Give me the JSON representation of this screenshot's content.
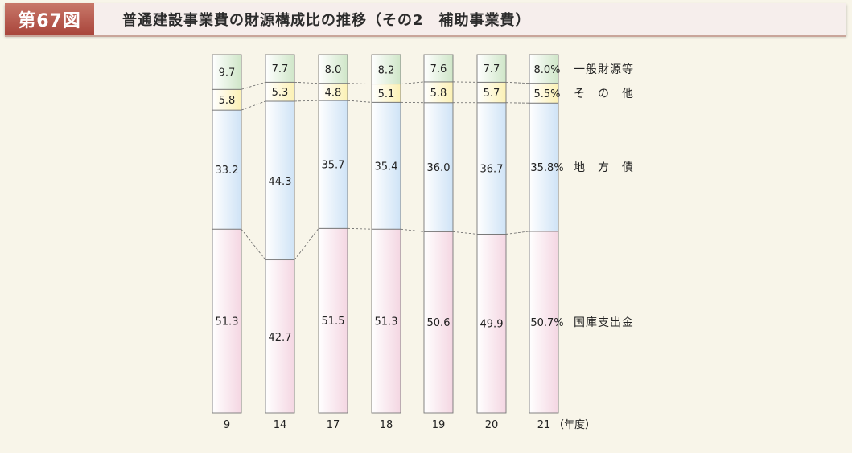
{
  "header": {
    "badge": "第67図",
    "title": "普通建設事業費の財源構成比の推移（その2　補助事業費）"
  },
  "colors": {
    "general": "#cfe6c8",
    "other": "#fcf1b4",
    "bonds": "#cfe3f6",
    "subsidy": "#f4d6e2",
    "border": "#777777"
  },
  "chart_data": {
    "type": "bar",
    "stacked": true,
    "unit": "%",
    "ylim": [
      0,
      100
    ],
    "categories": [
      "9",
      "14",
      "17",
      "18",
      "19",
      "20",
      "21"
    ],
    "xlabel_suffix": "（年度）",
    "series": [
      {
        "name": "国庫支出金",
        "color_key": "subsidy",
        "values": [
          51.3,
          42.7,
          51.5,
          51.3,
          50.6,
          49.9,
          50.7
        ]
      },
      {
        "name": "地　方　債",
        "color_key": "bonds",
        "values": [
          33.2,
          44.3,
          35.7,
          35.4,
          36.0,
          36.7,
          35.8
        ]
      },
      {
        "name": "そ　の　他",
        "color_key": "other",
        "values": [
          5.8,
          5.3,
          4.8,
          5.1,
          5.8,
          5.7,
          5.5
        ]
      },
      {
        "name": "一般財源等",
        "color_key": "general",
        "values": [
          9.7,
          7.7,
          8.0,
          8.2,
          7.6,
          7.7,
          8.0
        ]
      }
    ],
    "last_bar_labels": [
      "50.7%",
      "35.8%",
      "5.5%",
      "8.0%"
    ]
  }
}
